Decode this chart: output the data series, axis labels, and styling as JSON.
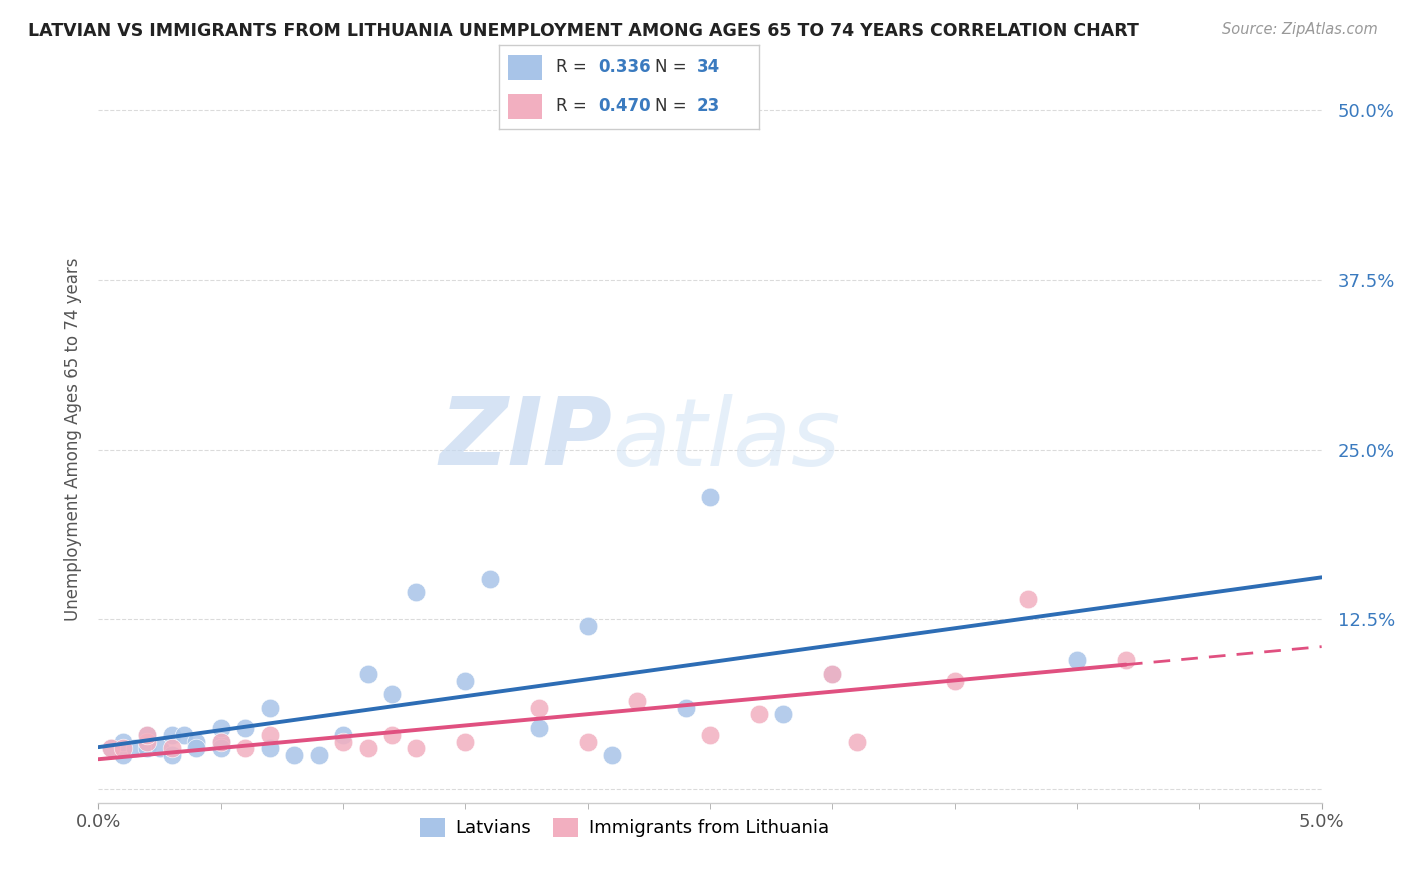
{
  "title": "LATVIAN VS IMMIGRANTS FROM LITHUANIA UNEMPLOYMENT AMONG AGES 65 TO 74 YEARS CORRELATION CHART",
  "source": "Source: ZipAtlas.com",
  "ylabel": "Unemployment Among Ages 65 to 74 years",
  "xmin": 0.0,
  "xmax": 0.05,
  "ymin": -0.01,
  "ymax": 0.525,
  "yticks": [
    0.0,
    0.125,
    0.25,
    0.375,
    0.5
  ],
  "ytick_labels": [
    "",
    "12.5%",
    "25.0%",
    "37.5%",
    "50.0%"
  ],
  "xtick_left_label": "0.0%",
  "xtick_right_label": "5.0%",
  "watermark_zip": "ZIP",
  "watermark_atlas": "atlas",
  "latvian_color": "#a8c4e8",
  "lithuanian_color": "#f2afc0",
  "latvian_line_color": "#2d6db5",
  "lithuanian_line_color": "#e05080",
  "R_latvian": 0.336,
  "N_latvian": 34,
  "R_lithuanian": 0.47,
  "N_lithuanian": 23,
  "latvian_scatter_x": [
    0.0005,
    0.001,
    0.001,
    0.0015,
    0.002,
    0.002,
    0.0025,
    0.003,
    0.003,
    0.0035,
    0.004,
    0.004,
    0.005,
    0.005,
    0.005,
    0.006,
    0.007,
    0.007,
    0.008,
    0.009,
    0.01,
    0.011,
    0.012,
    0.013,
    0.015,
    0.016,
    0.018,
    0.02,
    0.021,
    0.024,
    0.025,
    0.028,
    0.03,
    0.04
  ],
  "latvian_scatter_y": [
    0.03,
    0.025,
    0.035,
    0.03,
    0.03,
    0.04,
    0.03,
    0.025,
    0.04,
    0.04,
    0.035,
    0.03,
    0.035,
    0.045,
    0.03,
    0.045,
    0.06,
    0.03,
    0.025,
    0.025,
    0.04,
    0.085,
    0.07,
    0.145,
    0.08,
    0.155,
    0.045,
    0.12,
    0.025,
    0.06,
    0.215,
    0.055,
    0.085,
    0.095
  ],
  "lithuanian_scatter_x": [
    0.0005,
    0.001,
    0.002,
    0.002,
    0.003,
    0.005,
    0.006,
    0.007,
    0.01,
    0.011,
    0.012,
    0.013,
    0.015,
    0.018,
    0.02,
    0.022,
    0.025,
    0.027,
    0.03,
    0.031,
    0.035,
    0.038,
    0.042
  ],
  "lithuanian_scatter_y": [
    0.03,
    0.03,
    0.035,
    0.04,
    0.03,
    0.035,
    0.03,
    0.04,
    0.035,
    0.03,
    0.04,
    0.03,
    0.035,
    0.06,
    0.035,
    0.065,
    0.04,
    0.055,
    0.085,
    0.035,
    0.08,
    0.14,
    0.095
  ],
  "background_color": "#ffffff",
  "grid_color": "#d8d8d8",
  "spine_color": "#cccccc"
}
